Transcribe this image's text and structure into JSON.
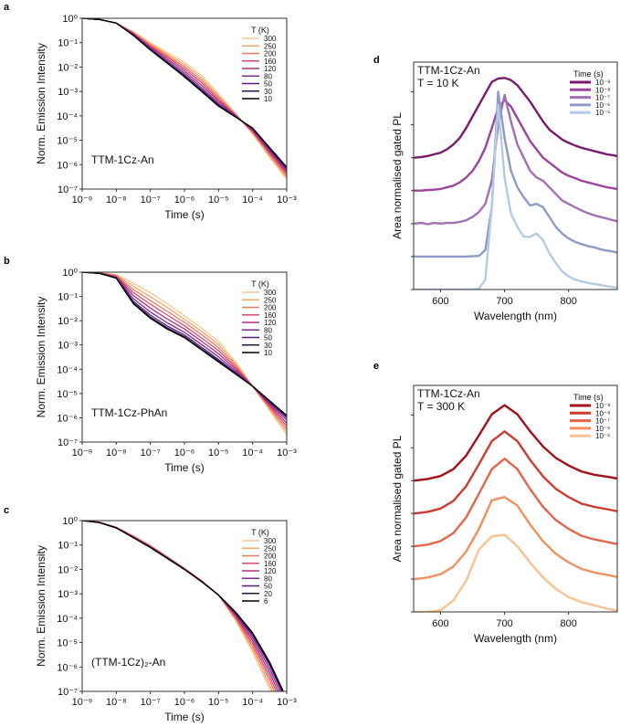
{
  "chart_data": [
    {
      "label": "a",
      "type": "line",
      "annotation": [
        "TTM-1Cz-An"
      ],
      "xlabel": "Time (s)",
      "ylabel": "Norm. Emission Intensity",
      "xscale": "log",
      "yscale": "log",
      "xlim": [
        1e-09,
        0.001
      ],
      "ylim": [
        1e-07,
        1
      ],
      "xtick_labels": [
        "10⁻⁹",
        "10⁻⁸",
        "10⁻⁷",
        "10⁻⁶",
        "10⁻⁵",
        "10⁻⁴",
        "10⁻³"
      ],
      "ytick_labels": [
        "10⁰",
        "10⁻¹",
        "10⁻²",
        "10⁻³",
        "10⁻⁴",
        "10⁻⁵",
        "10⁻⁶",
        "10⁻⁷"
      ],
      "legend_title": "T (K)",
      "legend_position": "top-right",
      "x_log10": [
        -9,
        -8.5,
        -8,
        -7.5,
        -7,
        -6.5,
        -6,
        -5.5,
        -5,
        -4.5,
        -4,
        -3.5,
        -3
      ],
      "series": [
        {
          "name": "300",
          "color": "#f7c98f",
          "log10_y": [
            0,
            -0.05,
            -0.2,
            -0.55,
            -1.0,
            -1.4,
            -1.8,
            -2.35,
            -3.1,
            -3.9,
            -4.75,
            -5.7,
            -6.6
          ]
        },
        {
          "name": "250",
          "color": "#f5a470",
          "log10_y": [
            0,
            -0.05,
            -0.2,
            -0.57,
            -1.05,
            -1.47,
            -1.89,
            -2.45,
            -3.18,
            -3.92,
            -4.71,
            -5.64,
            -6.53
          ]
        },
        {
          "name": "200",
          "color": "#ea7862",
          "log10_y": [
            0,
            -0.05,
            -0.2,
            -0.6,
            -1.09,
            -1.54,
            -1.98,
            -2.55,
            -3.25,
            -3.95,
            -4.68,
            -5.58,
            -6.45
          ]
        },
        {
          "name": "160",
          "color": "#d44d6e",
          "log10_y": [
            0,
            -0.05,
            -0.2,
            -0.62,
            -1.14,
            -1.6,
            -2.07,
            -2.64,
            -3.33,
            -3.97,
            -4.64,
            -5.52,
            -6.38
          ]
        },
        {
          "name": "120",
          "color": "#b0307d",
          "log10_y": [
            0,
            -0.05,
            -0.2,
            -0.64,
            -1.18,
            -1.67,
            -2.16,
            -2.74,
            -3.4,
            -3.99,
            -4.6,
            -5.46,
            -6.3
          ]
        },
        {
          "name": "80",
          "color": "#862a8c",
          "log10_y": [
            0,
            -0.05,
            -0.2,
            -0.66,
            -1.23,
            -1.74,
            -2.25,
            -2.84,
            -3.48,
            -4.01,
            -4.56,
            -5.4,
            -6.23
          ]
        },
        {
          "name": "50",
          "color": "#561c7c",
          "log10_y": [
            0,
            -0.05,
            -0.2,
            -0.68,
            -1.26,
            -1.8,
            -2.33,
            -2.92,
            -3.54,
            -4.03,
            -4.53,
            -5.35,
            -6.16
          ]
        },
        {
          "name": "30",
          "color": "#28104a",
          "log10_y": [
            0,
            -0.05,
            -0.2,
            -0.69,
            -1.29,
            -1.83,
            -2.37,
            -2.97,
            -3.58,
            -4.04,
            -4.51,
            -5.32,
            -6.13
          ]
        },
        {
          "name": "10",
          "color": "#000000",
          "log10_y": [
            0,
            -0.05,
            -0.2,
            -0.7,
            -1.3,
            -1.85,
            -2.4,
            -3.0,
            -3.6,
            -4.05,
            -4.5,
            -5.3,
            -6.1
          ]
        }
      ]
    },
    {
      "label": "b",
      "type": "line",
      "annotation": [
        "TTM-1Cz-PhAn"
      ],
      "xlabel": "Time (s)",
      "ylabel": "Norm. Emission Intensity",
      "xscale": "log",
      "yscale": "log",
      "xlim": [
        1e-09,
        0.001
      ],
      "ylim": [
        1e-07,
        1
      ],
      "xtick_labels": [
        "10⁻⁹",
        "10⁻⁸",
        "10⁻⁷",
        "10⁻⁶",
        "10⁻⁵",
        "10⁻⁴",
        "10⁻³"
      ],
      "ytick_labels": [
        "10⁰",
        "10⁻¹",
        "10⁻²",
        "10⁻³",
        "10⁻⁴",
        "10⁻⁵",
        "10⁻⁶",
        "10⁻⁷"
      ],
      "legend_title": "T (K)",
      "legend_position": "top-right",
      "x_log10": [
        -9,
        -8.5,
        -8,
        -7.5,
        -7,
        -6.5,
        -6,
        -5.5,
        -5,
        -4.5,
        -4,
        -3.5,
        -3
      ],
      "series": [
        {
          "name": "300",
          "color": "#f7c98f",
          "log10_y": [
            0,
            -0.02,
            -0.1,
            -0.45,
            -0.85,
            -1.3,
            -1.8,
            -2.3,
            -2.85,
            -3.7,
            -4.7,
            -5.7,
            -6.7
          ]
        },
        {
          "name": "250",
          "color": "#f5a470",
          "log10_y": [
            0,
            -0.02,
            -0.12,
            -0.58,
            -1.01,
            -1.46,
            -1.94,
            -2.44,
            -2.98,
            -3.78,
            -4.7,
            -5.64,
            -6.58
          ]
        },
        {
          "name": "200",
          "color": "#ea7862",
          "log10_y": [
            0,
            -0.03,
            -0.15,
            -0.71,
            -1.17,
            -1.62,
            -2.07,
            -2.57,
            -3.11,
            -3.85,
            -4.7,
            -5.58,
            -6.46
          ]
        },
        {
          "name": "160",
          "color": "#d44d6e",
          "log10_y": [
            0,
            -0.03,
            -0.17,
            -0.83,
            -1.32,
            -1.77,
            -2.21,
            -2.71,
            -3.23,
            -3.93,
            -4.7,
            -5.52,
            -6.34
          ]
        },
        {
          "name": "120",
          "color": "#b0307d",
          "log10_y": [
            0,
            -0.04,
            -0.19,
            -0.96,
            -1.48,
            -1.93,
            -2.34,
            -2.84,
            -3.36,
            -4.0,
            -4.7,
            -5.46,
            -6.22
          ]
        },
        {
          "name": "80",
          "color": "#862a8c",
          "log10_y": [
            0,
            -0.04,
            -0.21,
            -1.09,
            -1.64,
            -2.09,
            -2.48,
            -2.98,
            -3.49,
            -4.08,
            -4.7,
            -5.4,
            -6.1
          ]
        },
        {
          "name": "50",
          "color": "#561c7c",
          "log10_y": [
            0,
            -0.05,
            -0.23,
            -1.2,
            -1.77,
            -2.22,
            -2.59,
            -3.09,
            -3.6,
            -4.14,
            -4.7,
            -5.35,
            -6.0
          ]
        },
        {
          "name": "30",
          "color": "#28104a",
          "log10_y": [
            0,
            -0.05,
            -0.24,
            -1.26,
            -1.85,
            -2.3,
            -2.66,
            -3.16,
            -3.66,
            -4.18,
            -4.7,
            -5.32,
            -5.94
          ]
        },
        {
          "name": "10",
          "color": "#000000",
          "log10_y": [
            0,
            -0.05,
            -0.25,
            -1.3,
            -1.9,
            -2.35,
            -2.7,
            -3.2,
            -3.7,
            -4.2,
            -4.7,
            -5.3,
            -5.9
          ]
        }
      ]
    },
    {
      "label": "c",
      "type": "line",
      "annotation": [
        "(TTM-1Cz)₂-An"
      ],
      "xlabel": "Time (s)",
      "ylabel": "Norm. Emission Intensity",
      "xscale": "log",
      "yscale": "log",
      "xlim": [
        1e-09,
        0.001
      ],
      "ylim": [
        1e-07,
        1
      ],
      "xtick_labels": [
        "10⁻⁹",
        "10⁻⁸",
        "10⁻⁷",
        "10⁻⁶",
        "10⁻⁵",
        "10⁻⁴",
        "10⁻³"
      ],
      "ytick_labels": [
        "10⁰",
        "10⁻¹",
        "10⁻²",
        "10⁻³",
        "10⁻⁴",
        "10⁻⁵",
        "10⁻⁶",
        "10⁻⁷"
      ],
      "legend_title": "T (K)",
      "legend_position": "top-right",
      "x_log10": [
        -9,
        -8.5,
        -8,
        -7.5,
        -7,
        -6.5,
        -6,
        -5.5,
        -5,
        -4.5,
        -4,
        -3.5,
        -3
      ],
      "series": [
        {
          "name": "300",
          "color": "#f7c98f",
          "log10_y": [
            0,
            -0.06,
            -0.27,
            -0.62,
            -1.02,
            -1.48,
            -1.95,
            -2.45,
            -3.05,
            -4.1,
            -5.4,
            -6.9,
            -8.5
          ]
        },
        {
          "name": "250",
          "color": "#f5a470",
          "log10_y": [
            0,
            -0.06,
            -0.27,
            -0.63,
            -1.03,
            -1.49,
            -1.96,
            -2.46,
            -3.05,
            -4.05,
            -5.28,
            -6.74,
            -8.32
          ]
        },
        {
          "name": "200",
          "color": "#ea7862",
          "log10_y": [
            0,
            -0.07,
            -0.28,
            -0.64,
            -1.04,
            -1.5,
            -1.97,
            -2.47,
            -3.05,
            -3.99,
            -5.16,
            -6.57,
            -8.14
          ]
        },
        {
          "name": "160",
          "color": "#d44d6e",
          "log10_y": [
            0,
            -0.07,
            -0.28,
            -0.66,
            -1.06,
            -1.51,
            -1.97,
            -2.47,
            -3.05,
            -3.94,
            -5.04,
            -6.41,
            -7.96
          ]
        },
        {
          "name": "120",
          "color": "#b0307d",
          "log10_y": [
            0,
            -0.07,
            -0.29,
            -0.67,
            -1.07,
            -1.52,
            -1.98,
            -2.48,
            -3.05,
            -3.89,
            -4.92,
            -6.24,
            -7.78
          ]
        },
        {
          "name": "80",
          "color": "#862a8c",
          "log10_y": [
            0,
            -0.08,
            -0.29,
            -0.68,
            -1.08,
            -1.53,
            -1.99,
            -2.49,
            -3.05,
            -3.84,
            -4.8,
            -6.08,
            -7.6
          ]
        },
        {
          "name": "50",
          "color": "#561c7c",
          "log10_y": [
            0,
            -0.08,
            -0.3,
            -0.69,
            -1.09,
            -1.54,
            -2.0,
            -2.5,
            -3.05,
            -3.79,
            -4.7,
            -5.93,
            -7.44
          ]
        },
        {
          "name": "20",
          "color": "#28104a",
          "log10_y": [
            0,
            -0.08,
            -0.3,
            -0.7,
            -1.1,
            -1.55,
            -2.0,
            -2.5,
            -3.05,
            -3.77,
            -4.64,
            -5.86,
            -7.36
          ]
        },
        {
          "name": "6",
          "color": "#000000",
          "log10_y": [
            0,
            -0.08,
            -0.3,
            -0.7,
            -1.1,
            -1.55,
            -2.0,
            -2.5,
            -3.05,
            -3.75,
            -4.6,
            -5.8,
            -7.3
          ]
        }
      ]
    },
    {
      "label": "d",
      "type": "line",
      "annotation": [
        "TTM-1Cz-An",
        "T = 10 K"
      ],
      "xlabel": "Wavelength (nm)",
      "ylabel": "Area normalised gated PL",
      "xlim": [
        558,
        876
      ],
      "ylim": [
        0,
        6.9
      ],
      "xticks": [
        600,
        700,
        800
      ],
      "xtick_labels": [
        "600",
        "700",
        "800"
      ],
      "yticks": [
        0,
        1,
        2,
        3,
        4,
        5,
        6
      ],
      "legend_title": "Time (s)",
      "legend_position": "top-right",
      "x": [
        560,
        570,
        580,
        590,
        600,
        610,
        620,
        630,
        640,
        650,
        660,
        670,
        680,
        690,
        700,
        710,
        720,
        730,
        740,
        750,
        760,
        770,
        780,
        790,
        800,
        810,
        820,
        830,
        840,
        850,
        860,
        870,
        880
      ],
      "series": [
        {
          "name": "10⁻⁹",
          "color": "#7a1a6e",
          "y": [
            4.0,
            4.02,
            4.05,
            4.1,
            4.15,
            4.25,
            4.4,
            4.6,
            4.9,
            5.25,
            5.6,
            5.95,
            6.3,
            6.4,
            6.42,
            6.35,
            6.2,
            5.95,
            5.7,
            5.4,
            5.1,
            4.85,
            4.7,
            4.55,
            4.45,
            4.37,
            4.3,
            4.25,
            4.2,
            4.15,
            4.1,
            4.07,
            4.03
          ]
        },
        {
          "name": "10⁻⁸",
          "color": "#9a459b",
          "y": [
            3.0,
            3.0,
            3.02,
            3.03,
            3.05,
            3.1,
            3.15,
            3.25,
            3.4,
            3.6,
            3.9,
            4.3,
            4.9,
            5.5,
            5.75,
            5.55,
            5.2,
            4.85,
            4.5,
            4.25,
            4.0,
            3.85,
            3.7,
            3.55,
            3.45,
            3.38,
            3.3,
            3.25,
            3.2,
            3.15,
            3.1,
            3.07,
            3.03
          ]
        },
        {
          "name": "10⁻⁷",
          "color": "#a070b4",
          "y": [
            2.0,
            2.02,
            1.98,
            2.02,
            2.0,
            2.02,
            2.02,
            2.05,
            2.1,
            2.2,
            2.35,
            2.6,
            3.3,
            5.0,
            5.9,
            5.1,
            4.4,
            4.0,
            3.6,
            3.4,
            3.3,
            3.1,
            2.9,
            2.7,
            2.6,
            2.5,
            2.4,
            2.32,
            2.25,
            2.2,
            2.15,
            2.1,
            2.05
          ]
        },
        {
          "name": "10⁻⁶",
          "color": "#8f99c8",
          "y": [
            1.0,
            1.0,
            1.0,
            1.0,
            1.0,
            1.0,
            1.0,
            1.0,
            1.0,
            1.01,
            1.02,
            1.2,
            2.5,
            6.0,
            4.6,
            3.6,
            3.1,
            2.8,
            2.55,
            2.6,
            2.5,
            2.2,
            1.9,
            1.7,
            1.55,
            1.45,
            1.38,
            1.32,
            1.28,
            1.22,
            1.18,
            1.15,
            1.1
          ]
        },
        {
          "name": "10⁻⁵",
          "color": "#b4cbe3",
          "y": [
            0,
            0,
            0,
            0,
            0,
            0,
            0,
            0,
            0,
            0,
            0.03,
            0.3,
            2.5,
            5.6,
            3.4,
            2.3,
            1.9,
            1.6,
            1.6,
            1.7,
            1.5,
            1.1,
            0.8,
            0.55,
            0.4,
            0.3,
            0.25,
            0.2,
            0.17,
            0.14,
            0.1,
            0.07,
            0.05
          ]
        }
      ]
    },
    {
      "label": "e",
      "type": "line",
      "annotation": [
        "TTM-1Cz-An",
        "T = 300 K"
      ],
      "xlabel": "Wavelength (nm)",
      "ylabel": "Area normalised gated PL",
      "xlim": [
        558,
        876
      ],
      "ylim": [
        0,
        6.9
      ],
      "xticks": [
        600,
        700,
        800
      ],
      "xtick_labels": [
        "600",
        "700",
        "800"
      ],
      "yticks": [
        0,
        1,
        2,
        3,
        4,
        5,
        6
      ],
      "legend_title": "Time (s)",
      "legend_position": "top-right",
      "x": [
        560,
        580,
        600,
        620,
        640,
        660,
        680,
        700,
        720,
        740,
        760,
        780,
        800,
        820,
        840,
        860,
        880
      ],
      "series": [
        {
          "name": "10⁻⁹",
          "color": "#a3101a",
          "y": [
            4.0,
            4.05,
            4.14,
            4.35,
            4.76,
            5.38,
            6.02,
            6.3,
            6.02,
            5.5,
            5.04,
            4.69,
            4.46,
            4.28,
            4.18,
            4.12,
            4.05
          ]
        },
        {
          "name": "10⁻⁸",
          "color": "#cc3a30",
          "y": [
            3.0,
            3.05,
            3.15,
            3.38,
            3.83,
            4.5,
            5.2,
            5.5,
            5.2,
            4.63,
            4.13,
            3.75,
            3.5,
            3.3,
            3.2,
            3.13,
            3.05
          ]
        },
        {
          "name": "10⁻⁷",
          "color": "#e5654c",
          "y": [
            2.0,
            2.05,
            2.16,
            2.4,
            2.88,
            3.6,
            4.35,
            4.67,
            4.35,
            3.74,
            3.2,
            2.8,
            2.53,
            2.32,
            2.21,
            2.13,
            2.05
          ]
        },
        {
          "name": "10⁻⁶",
          "color": "#f1905f",
          "y": [
            1.0,
            1.05,
            1.15,
            1.38,
            1.84,
            2.53,
            3.4,
            3.5,
            3.24,
            2.66,
            2.15,
            1.77,
            1.51,
            1.31,
            1.2,
            1.13,
            1.05
          ]
        },
        {
          "name": "10⁻⁵",
          "color": "#f8c291",
          "y": [
            0,
            0,
            0.05,
            0.35,
            0.95,
            1.9,
            2.3,
            2.35,
            2.0,
            1.5,
            1.05,
            0.7,
            0.45,
            0.3,
            0.2,
            0.1,
            0.02
          ]
        }
      ]
    }
  ]
}
